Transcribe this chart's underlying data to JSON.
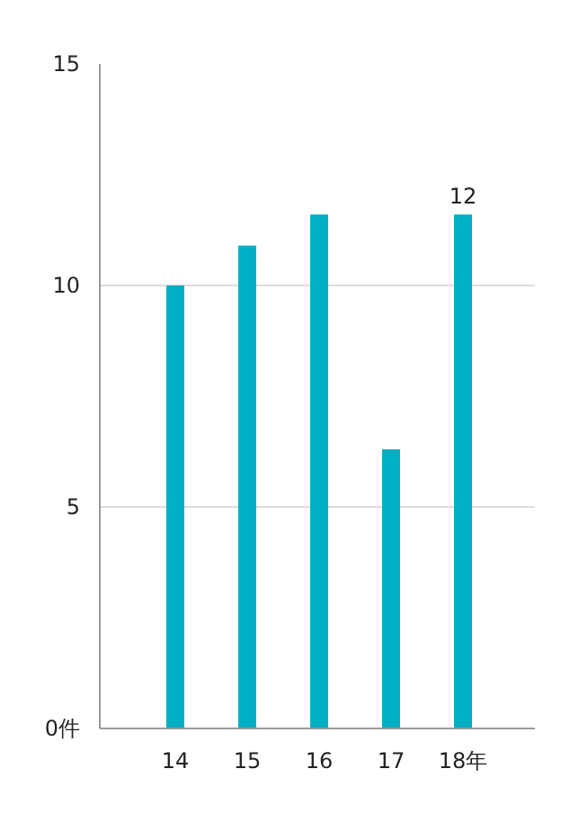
{
  "chart_data": {
    "type": "bar",
    "categories": [
      "14",
      "15",
      "16",
      "17",
      "18年"
    ],
    "values": [
      10,
      10.9,
      11.6,
      6.3,
      11.6
    ],
    "color": "#00afc4",
    "value_labels": [
      null,
      null,
      null,
      null,
      "12"
    ],
    "ylim": [
      0,
      15
    ],
    "yticks": [
      {
        "value": 0,
        "label": "0件"
      },
      5,
      10,
      15
    ],
    "grid": "y"
  }
}
